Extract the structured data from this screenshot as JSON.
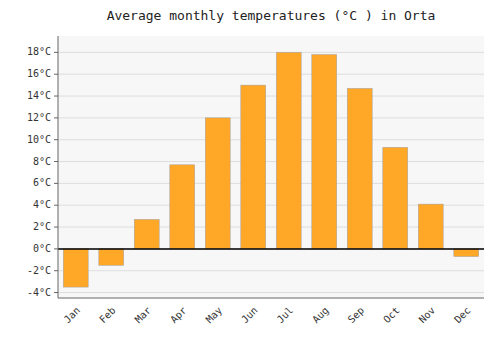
{
  "chart_data": {
    "type": "bar",
    "title": "Average monthly temperatures (°C ) in Orta",
    "categories": [
      "Jan",
      "Feb",
      "Mar",
      "Apr",
      "May",
      "Jun",
      "Jul",
      "Aug",
      "Sep",
      "Oct",
      "Nov",
      "Dec"
    ],
    "values": [
      -3.5,
      -1.5,
      2.7,
      7.7,
      12.0,
      15.0,
      18.0,
      17.8,
      14.7,
      9.3,
      4.1,
      -0.7
    ],
    "color": "#FFA726",
    "ylim": [
      -4.5,
      19.5
    ],
    "yticks": [
      {
        "value": -4,
        "label": "-4°C"
      },
      {
        "value": -2,
        "label": "-2°C"
      },
      {
        "value": 0,
        "label": "0°C"
      },
      {
        "value": 2,
        "label": "2°C"
      },
      {
        "value": 4,
        "label": "4°C"
      },
      {
        "value": 6,
        "label": "6°C"
      },
      {
        "value": 8,
        "label": "8°C"
      },
      {
        "value": 10,
        "label": "10°C"
      },
      {
        "value": 12,
        "label": "12°C"
      },
      {
        "value": 14,
        "label": "14°C"
      },
      {
        "value": 16,
        "label": "16°C"
      },
      {
        "value": 18,
        "label": "18°C"
      }
    ],
    "grid": true
  }
}
